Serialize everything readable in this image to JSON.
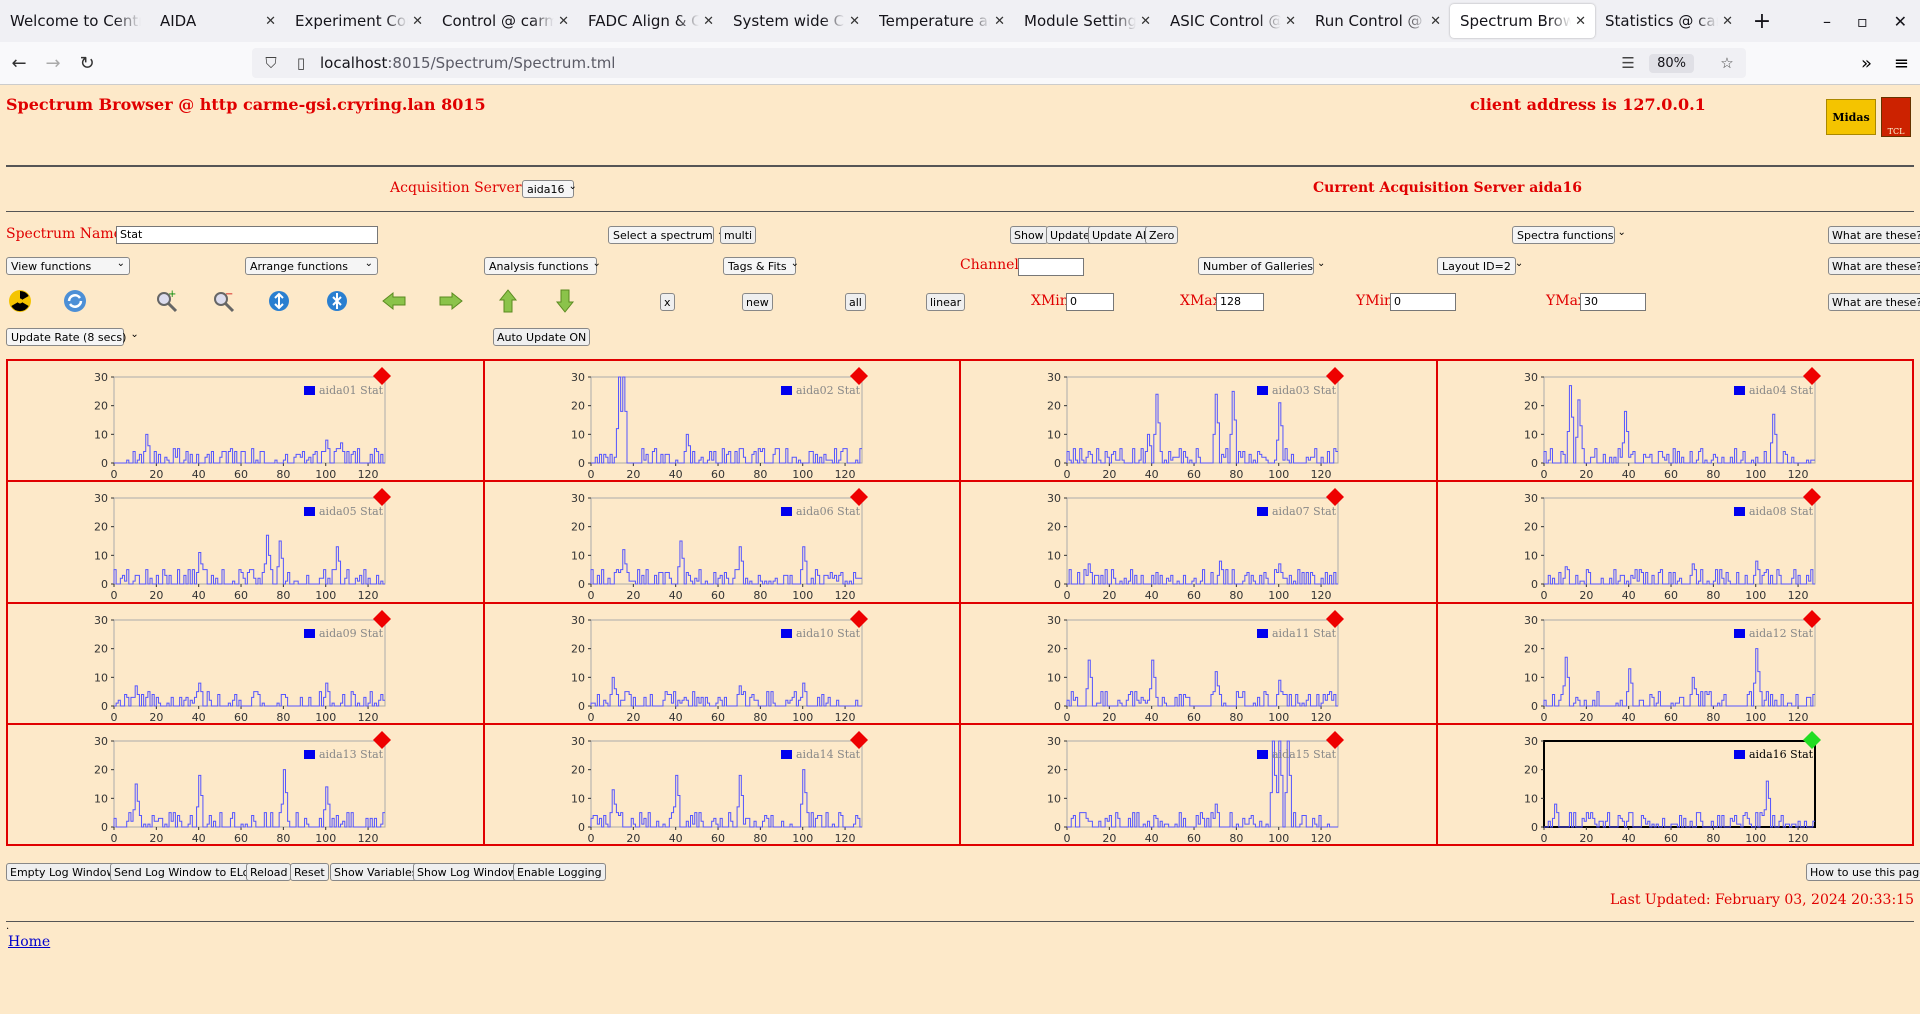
{
  "browser": {
    "tabs": [
      {
        "label": "Welcome to Centre",
        "close": false
      },
      {
        "label": "AIDA",
        "close": true
      },
      {
        "label": "Experiment Control",
        "close": true
      },
      {
        "label": "Control @ carme",
        "close": true
      },
      {
        "label": "FADC Align & Control",
        "close": true
      },
      {
        "label": "System wide Checks",
        "close": true
      },
      {
        "label": "Temperature and",
        "close": true
      },
      {
        "label": "Module Settings",
        "close": true
      },
      {
        "label": "ASIC Control @ c",
        "close": true
      },
      {
        "label": "Run Control @ c",
        "close": true
      },
      {
        "label": "Spectrum Browser",
        "close": true,
        "active": true
      },
      {
        "label": "Statistics @ carm",
        "close": true
      }
    ],
    "url_host": "localhost",
    "url_path": ":8015/Spectrum/Spectrum.tml",
    "zoom": "80%"
  },
  "header": {
    "title": "Spectrum Browser @ http carme-gsi.cryring.lan 8015",
    "client": "client address is 127.0.0.1",
    "logo1": "Midas",
    "logo2": "TCL"
  },
  "acq": {
    "label": "Acquisition Servers",
    "server_select": "aida16",
    "current": "Current Acquisition Server aida16"
  },
  "controls": {
    "spectrum_name_label": "Spectrum Name:",
    "spectrum_name": "Stat",
    "select_spectrum": "Select a spectrum",
    "multi": "multi",
    "show": "Show",
    "update": "Update",
    "update_all": "Update All",
    "zero": "Zero",
    "spectra_functions": "Spectra functions",
    "what": "What are these?",
    "view_functions": "View functions",
    "arrange_functions": "Arrange functions",
    "analysis_functions": "Analysis functions",
    "tags_fits": "Tags & Fits",
    "channel_label": "Channel:",
    "channel": "",
    "galleries": "Number of Galleries",
    "layout": "Layout ID=2",
    "x": "x",
    "new": "new",
    "all": "all",
    "linear": "linear",
    "xmin_label": "XMin",
    "xmin": "0",
    "xmax_label": "XMax",
    "xmax": "128",
    "ymin_label": "YMin",
    "ymin": "0",
    "ymax_label": "YMax",
    "ymax": "30",
    "update_rate": "Update Rate (8 secs)",
    "auto_update": "Auto Update ON"
  },
  "footer": {
    "empty_log": "Empty Log Window",
    "send_log": "Send Log Window to ELog",
    "reload": "Reload",
    "reset": "Reset",
    "show_vars": "Show Variables",
    "show_log": "Show Log Window",
    "enable_log": "Enable Logging",
    "how_to": "How to use this page",
    "last_updated": "Last Updated: February 03, 2024 20:33:15",
    "dot": ".",
    "home": "Home"
  },
  "chart_data": {
    "type": "line",
    "xlim": [
      0,
      128
    ],
    "ylim": [
      0,
      30
    ],
    "xticks": [
      "0",
      "20",
      "40",
      "60",
      "80",
      "100",
      "120"
    ],
    "yticks": [
      "0",
      "10",
      "20",
      "30"
    ],
    "series": [
      {
        "name": "aida01 Stat",
        "status": "red",
        "peaks": [
          [
            15,
            10
          ],
          [
            100,
            8
          ],
          [
            107,
            7
          ]
        ]
      },
      {
        "name": "aida02 Stat",
        "status": "red",
        "peaks": [
          [
            13,
            30
          ],
          [
            15,
            30
          ],
          [
            45,
            10
          ]
        ]
      },
      {
        "name": "aida03 Stat",
        "status": "red",
        "peaks": [
          [
            42,
            24
          ],
          [
            70,
            24
          ],
          [
            78,
            25
          ],
          [
            100,
            21
          ],
          [
            38,
            10
          ]
        ]
      },
      {
        "name": "aida04 Stat",
        "status": "red",
        "peaks": [
          [
            12,
            27
          ],
          [
            16,
            22
          ],
          [
            38,
            18
          ],
          [
            108,
            17
          ]
        ]
      },
      {
        "name": "aida05 Stat",
        "status": "red",
        "peaks": [
          [
            72,
            17
          ],
          [
            78,
            15
          ],
          [
            105,
            13
          ],
          [
            40,
            11
          ]
        ]
      },
      {
        "name": "aida06 Stat",
        "status": "red",
        "peaks": [
          [
            42,
            15
          ],
          [
            70,
            13
          ],
          [
            100,
            13
          ],
          [
            15,
            12
          ]
        ]
      },
      {
        "name": "aida07 Stat",
        "status": "red",
        "peaks": [
          [
            72,
            8
          ],
          [
            100,
            7
          ],
          [
            10,
            7
          ]
        ]
      },
      {
        "name": "aida08 Stat",
        "status": "red",
        "peaks": [
          [
            100,
            8
          ],
          [
            70,
            7
          ],
          [
            10,
            6
          ]
        ]
      },
      {
        "name": "aida09 Stat",
        "status": "red",
        "peaks": [
          [
            40,
            8
          ],
          [
            100,
            8
          ],
          [
            10,
            7
          ]
        ]
      },
      {
        "name": "aida10 Stat",
        "status": "red",
        "peaks": [
          [
            10,
            10
          ],
          [
            100,
            8
          ],
          [
            70,
            7
          ]
        ]
      },
      {
        "name": "aida11 Stat",
        "status": "red",
        "peaks": [
          [
            10,
            16
          ],
          [
            40,
            16
          ],
          [
            70,
            12
          ],
          [
            100,
            9
          ]
        ]
      },
      {
        "name": "aida12 Stat",
        "status": "red",
        "peaks": [
          [
            10,
            17
          ],
          [
            100,
            20
          ],
          [
            40,
            13
          ],
          [
            70,
            10
          ]
        ]
      },
      {
        "name": "aida13 Stat",
        "status": "red",
        "peaks": [
          [
            40,
            18
          ],
          [
            80,
            20
          ],
          [
            100,
            14
          ],
          [
            10,
            15
          ]
        ]
      },
      {
        "name": "aida14 Stat",
        "status": "red",
        "peaks": [
          [
            40,
            18
          ],
          [
            70,
            18
          ],
          [
            100,
            20
          ],
          [
            10,
            13
          ]
        ]
      },
      {
        "name": "aida15 Stat",
        "status": "red",
        "peaks": [
          [
            97,
            30
          ],
          [
            100,
            30
          ],
          [
            104,
            30
          ],
          [
            70,
            8
          ]
        ]
      },
      {
        "name": "aida16 Stat",
        "status": "green",
        "peaks": [
          [
            105,
            16
          ],
          [
            5,
            8
          ],
          [
            40,
            5
          ]
        ]
      }
    ]
  }
}
